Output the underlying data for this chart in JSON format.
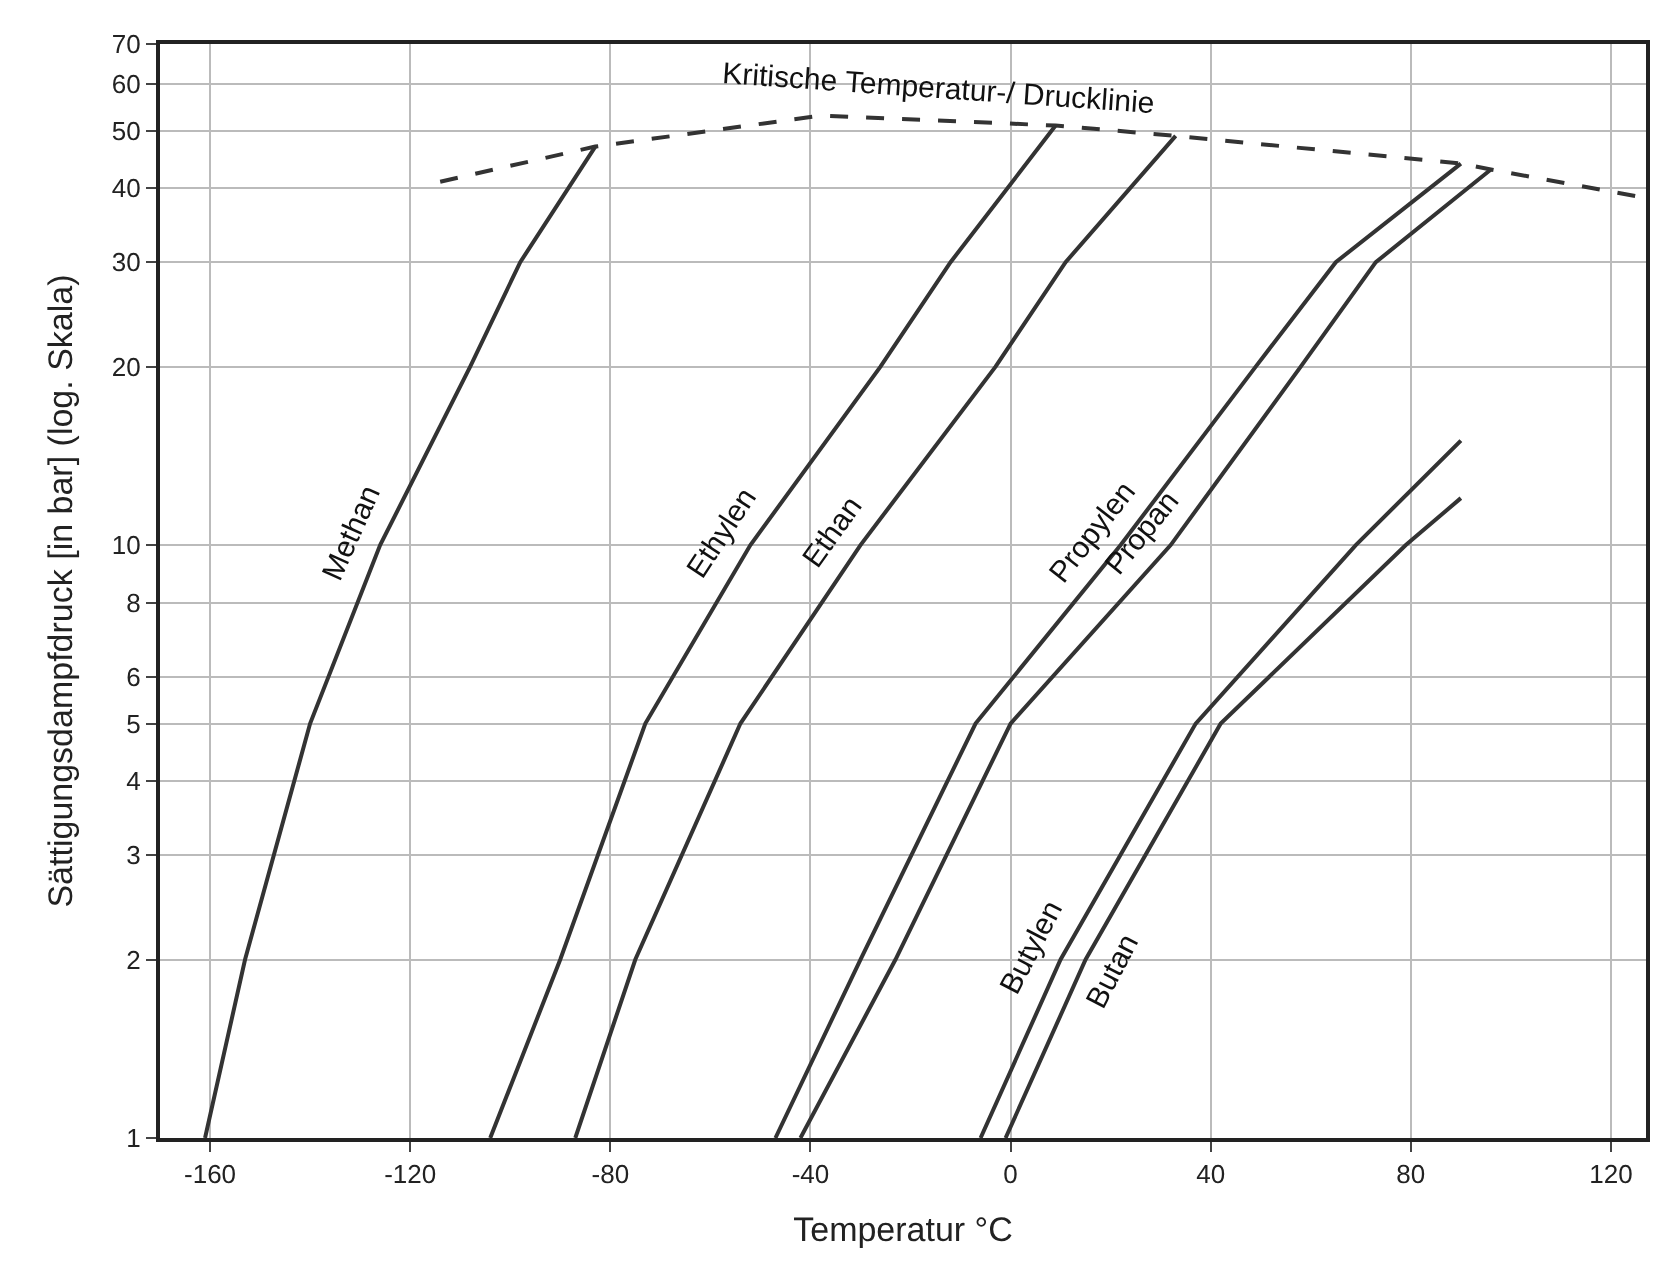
{
  "chart_data": {
    "type": "line",
    "xlabel": "Temperatur °C",
    "ylabel": "Sättigungsdampfdruck [in bar] (log. Skala)",
    "log": "y",
    "grid": true,
    "legend": false,
    "marker": "none",
    "xlim": [
      -170,
      127
    ],
    "xticks": [
      -160,
      -120,
      -80,
      -40,
      0,
      40,
      80,
      120
    ],
    "ylim": [
      1,
      70
    ],
    "yticks": [
      1,
      2,
      3,
      4,
      5,
      6,
      8,
      10,
      20,
      30,
      40,
      50,
      60,
      70
    ],
    "series": [
      {
        "name": "Methan",
        "color": "#333333",
        "x": [
          -161,
          -153,
          -140,
          -126,
          -108,
          -98,
          -83
        ],
        "values": [
          1,
          2,
          5,
          10,
          20,
          30,
          47
        ]
      },
      {
        "name": "Ethylen",
        "color": "#333333",
        "x": [
          -104,
          -90,
          -73,
          -52,
          -26,
          -12,
          9
        ],
        "values": [
          1,
          2,
          5,
          10,
          20,
          30,
          51
        ]
      },
      {
        "name": "Ethan",
        "color": "#333333",
        "x": [
          -87,
          -75,
          -54,
          -30,
          -3,
          11,
          33
        ],
        "values": [
          1,
          2,
          5,
          10,
          20,
          30,
          49
        ]
      },
      {
        "name": "Propylen",
        "color": "#333333",
        "x": [
          -47,
          -30,
          -7,
          22,
          49,
          65,
          90
        ],
        "values": [
          1,
          2,
          5,
          10,
          20,
          30,
          44
        ]
      },
      {
        "name": "Propan",
        "color": "#333333",
        "x": [
          -42,
          -23,
          0,
          32,
          58,
          73,
          96
        ],
        "values": [
          1,
          2,
          5,
          10,
          20,
          30,
          43
        ]
      },
      {
        "name": "Butylen",
        "color": "#333333",
        "x": [
          -6,
          10,
          37,
          69,
          90
        ],
        "values": [
          1,
          2,
          5,
          10,
          15
        ]
      },
      {
        "name": "Butan",
        "color": "#333333",
        "x": [
          -1,
          15,
          42,
          79,
          90
        ],
        "values": [
          1,
          2,
          5,
          10,
          12
        ]
      },
      {
        "name": "Kritische Temperatur-/ Drucklinie",
        "color": "#333333",
        "line_style": "dashed",
        "x": [
          -114,
          -83,
          -38,
          9,
          33,
          90,
          96,
          127
        ],
        "values": [
          41,
          47,
          53,
          51,
          49,
          44,
          43,
          38.5
        ]
      }
    ]
  }
}
